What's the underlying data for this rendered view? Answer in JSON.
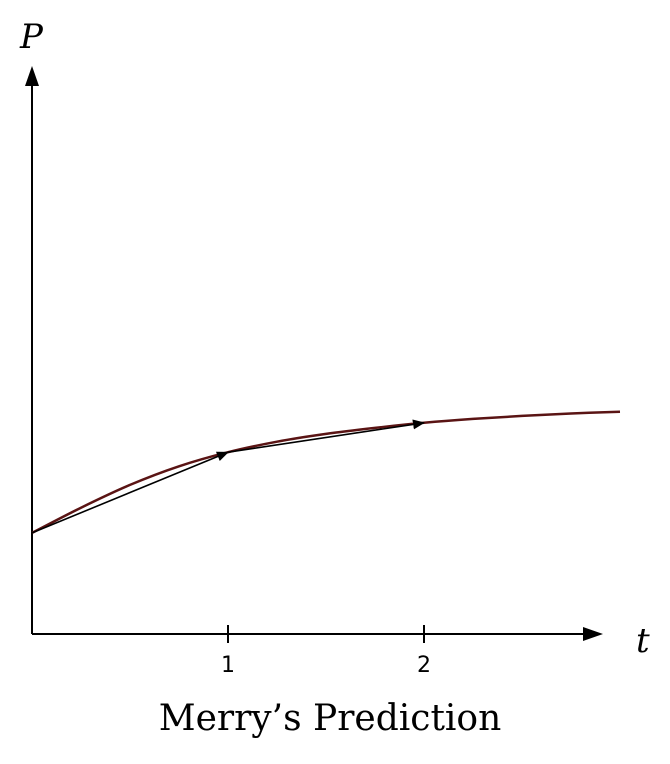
{
  "caption": "Merry’s Prediction",
  "axes": {
    "x_label": "t",
    "y_label": "P",
    "x_ticks": [
      {
        "value": 1,
        "label": "1"
      },
      {
        "value": 2,
        "label": "2"
      }
    ]
  },
  "chart_data": {
    "type": "line",
    "title": "Merry’s Prediction",
    "xlabel": "t",
    "ylabel": "P",
    "xlim": [
      0,
      3.0
    ],
    "ylim": [
      0,
      1.0
    ],
    "series": [
      {
        "kind": "curve",
        "x": [
          0,
          0.25,
          0.5,
          0.75,
          1.0,
          1.25,
          1.5,
          1.75,
          2.0,
          2.25,
          2.5,
          2.75,
          3.0
        ],
        "y": [
          0.337,
          0.421,
          0.497,
          0.559,
          0.606,
          0.641,
          0.667,
          0.687,
          0.704,
          0.717,
          0.727,
          0.735,
          0.741
        ]
      },
      {
        "kind": "step-arrows",
        "x": [
          0,
          1,
          2
        ],
        "y": [
          0.337,
          0.606,
          0.704
        ]
      }
    ],
    "colors": {
      "curve": "#5a1414",
      "arrows": "#000000",
      "axes": "#000000"
    }
  }
}
